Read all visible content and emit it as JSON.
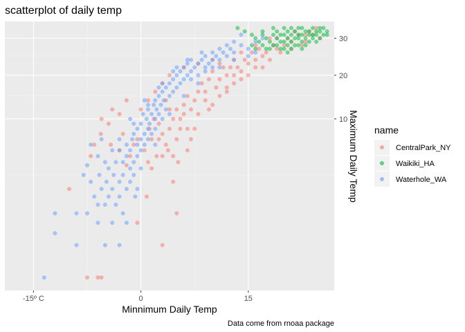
{
  "chart_data": {
    "type": "scatter",
    "title": "scatterplot of daily temp",
    "xlabel": "Minnimum Daily Temp",
    "ylabel": "Maximum Daily Temp",
    "caption": "Data come from rnoaa package",
    "xlim": [
      -19,
      27
    ],
    "ylim": [
      -10.5,
      35
    ],
    "x_ticks": [
      {
        "value": -15,
        "label": "-15º C"
      },
      {
        "value": 0,
        "label": "0"
      },
      {
        "value": 15,
        "label": "15"
      }
    ],
    "y_ticks": [
      {
        "value": 10,
        "label": "10"
      },
      {
        "value": 20,
        "label": "20"
      },
      {
        "value": 30,
        "label": "30"
      }
    ],
    "y_axis_position": "right",
    "y_scale": "sqrt",
    "grid": true,
    "alpha": 0.5,
    "legend": {
      "title": "name",
      "placement": "right",
      "entries": [
        {
          "name": "CentralPark_NY",
          "color": "#F8766D"
        },
        {
          "name": "Waikiki_HA",
          "color": "#00BA38"
        },
        {
          "name": "Waterhole_WA",
          "color": "#619CFF"
        }
      ]
    },
    "series": [
      {
        "name": "CentralPark_NY",
        "color": "#F8766D",
        "points": [
          [
            -10,
            -2
          ],
          [
            -7.5,
            -10
          ],
          [
            -6,
            -10
          ],
          [
            -5.5,
            -10
          ],
          [
            -7,
            3
          ],
          [
            -6.5,
            5
          ],
          [
            -5.6,
            7
          ],
          [
            -4.5,
            9
          ],
          [
            -4.2,
            5
          ],
          [
            -3,
            4
          ],
          [
            -2.5,
            7
          ],
          [
            -2,
            1.5
          ],
          [
            -1.5,
            3
          ],
          [
            -1,
            5
          ],
          [
            -0.5,
            6
          ],
          [
            0.5,
            4
          ],
          [
            1,
            2
          ],
          [
            1.5,
            1
          ],
          [
            0.8,
            -3
          ],
          [
            -0.5,
            -6
          ],
          [
            1.5,
            6
          ],
          [
            1.2,
            8
          ],
          [
            1.8,
            10
          ],
          [
            2.5,
            9
          ],
          [
            3,
            7
          ],
          [
            3.5,
            5
          ],
          [
            3,
            3
          ],
          [
            2.2,
            3
          ],
          [
            4,
            8
          ],
          [
            4.5,
            10
          ],
          [
            5,
            12
          ],
          [
            5.5,
            10
          ],
          [
            4,
            12
          ],
          [
            3.5,
            14
          ],
          [
            2.5,
            6
          ],
          [
            3.8,
            4
          ],
          [
            4.5,
            3
          ],
          [
            5,
            6
          ],
          [
            5.2,
            2
          ],
          [
            4.5,
            -1
          ],
          [
            5.5,
            8
          ],
          [
            6,
            11
          ],
          [
            6.5,
            8
          ],
          [
            6,
            13
          ],
          [
            6.5,
            15
          ],
          [
            7,
            12
          ],
          [
            7.5,
            14
          ],
          [
            8,
            16
          ],
          [
            8.5,
            18
          ],
          [
            9,
            16
          ],
          [
            9.5,
            19
          ],
          [
            10,
            21
          ],
          [
            10.5,
            17
          ],
          [
            11,
            19
          ],
          [
            11.5,
            22
          ],
          [
            12,
            20
          ],
          [
            12.5,
            22
          ],
          [
            13,
            20
          ],
          [
            13.5,
            22
          ],
          [
            14,
            21
          ],
          [
            14.5,
            24
          ],
          [
            15,
            23
          ],
          [
            15.5,
            26
          ],
          [
            16,
            24
          ],
          [
            16.5,
            27
          ],
          [
            17,
            25
          ],
          [
            17.5,
            26
          ],
          [
            18,
            24
          ],
          [
            18.5,
            28
          ],
          [
            19,
            27
          ],
          [
            19.5,
            26
          ],
          [
            20,
            28
          ],
          [
            20.5,
            30
          ],
          [
            21,
            29
          ],
          [
            21.5,
            32
          ],
          [
            22,
            31
          ],
          [
            22.5,
            28
          ],
          [
            23,
            31
          ],
          [
            23.5,
            32
          ],
          [
            24,
            31
          ],
          [
            24.5,
            33
          ],
          [
            25,
            30
          ],
          [
            12,
            17
          ],
          [
            11,
            15
          ],
          [
            9.5,
            12
          ],
          [
            8,
            11
          ],
          [
            7.5,
            8
          ],
          [
            7,
            6
          ],
          [
            6.5,
            4
          ],
          [
            5,
            -5
          ],
          [
            3,
            -8
          ],
          [
            -4,
            12
          ],
          [
            -5.5,
            10
          ],
          [
            -3,
            11
          ],
          [
            -2,
            14
          ],
          [
            0,
            12
          ],
          [
            1,
            14
          ],
          [
            2,
            16
          ],
          [
            3,
            18
          ],
          [
            4,
            20
          ],
          [
            6,
            22
          ],
          [
            8,
            23
          ],
          [
            10,
            24
          ],
          [
            13,
            24
          ],
          [
            11,
            23
          ],
          [
            14,
            26
          ],
          [
            16,
            28
          ],
          [
            18,
            30
          ],
          [
            19,
            30
          ],
          [
            21,
            27
          ],
          [
            23,
            29
          ],
          [
            17,
            22
          ],
          [
            9,
            14
          ],
          [
            10,
            13
          ],
          [
            12,
            16
          ],
          [
            13,
            18
          ],
          [
            15,
            20
          ],
          [
            14,
            19
          ],
          [
            16,
            22
          ]
        ]
      },
      {
        "name": "Waikiki_HA",
        "color": "#00BA38",
        "points": [
          [
            13.5,
            33
          ],
          [
            14.5,
            32
          ],
          [
            15.5,
            31
          ],
          [
            16,
            27
          ],
          [
            16.5,
            29
          ],
          [
            17,
            28
          ],
          [
            17,
            31
          ],
          [
            17.5,
            30
          ],
          [
            18,
            27
          ],
          [
            18,
            29
          ],
          [
            18.5,
            31
          ],
          [
            19,
            28
          ],
          [
            19,
            30
          ],
          [
            19.5,
            29
          ],
          [
            19.5,
            31
          ],
          [
            20,
            27
          ],
          [
            20,
            29
          ],
          [
            20,
            31
          ],
          [
            20.5,
            28
          ],
          [
            20.5,
            30
          ],
          [
            20.5,
            32
          ],
          [
            21,
            29
          ],
          [
            21,
            31
          ],
          [
            21,
            27
          ],
          [
            21.5,
            30
          ],
          [
            21.5,
            32
          ],
          [
            22,
            28
          ],
          [
            22,
            30
          ],
          [
            22,
            31
          ],
          [
            22.5,
            29
          ],
          [
            22.5,
            31
          ],
          [
            22.5,
            33
          ],
          [
            23,
            30
          ],
          [
            23,
            32
          ],
          [
            23,
            28
          ],
          [
            23.5,
            31
          ],
          [
            23.5,
            32
          ],
          [
            24,
            30
          ],
          [
            24,
            31
          ],
          [
            24,
            33
          ],
          [
            24.5,
            31
          ],
          [
            24.5,
            32
          ],
          [
            25,
            30
          ],
          [
            25,
            32
          ],
          [
            25.5,
            31
          ],
          [
            25.5,
            33
          ],
          [
            26,
            32
          ],
          [
            26,
            31
          ],
          [
            18.5,
            33
          ],
          [
            19,
            32
          ],
          [
            16,
            30
          ],
          [
            15.5,
            28
          ],
          [
            17.5,
            27
          ],
          [
            18.5,
            28
          ],
          [
            20.5,
            26
          ],
          [
            21.5,
            28
          ],
          [
            22.5,
            27
          ],
          [
            23.5,
            29
          ],
          [
            24.5,
            29
          ],
          [
            25,
            33
          ],
          [
            19.5,
            27
          ],
          [
            20,
            33
          ],
          [
            21,
            33
          ],
          [
            22,
            33
          ],
          [
            17,
            32
          ]
        ]
      },
      {
        "name": "Waterhole_WA",
        "color": "#619CFF",
        "points": [
          [
            -13.5,
            -10
          ],
          [
            -12,
            -5
          ],
          [
            -9,
            -5
          ],
          [
            -7.5,
            -5
          ],
          [
            -7.5,
            1.5
          ],
          [
            -7,
            -1
          ],
          [
            -6.5,
            -3
          ],
          [
            -6,
            -4
          ],
          [
            -5.8,
            0
          ],
          [
            -5.5,
            -2
          ],
          [
            -5,
            -4
          ],
          [
            -5,
            2
          ],
          [
            -4.8,
            -1
          ],
          [
            -4.5,
            -3
          ],
          [
            -4.5,
            1
          ],
          [
            -4,
            -2
          ],
          [
            -4,
            -6
          ],
          [
            -3.8,
            0
          ],
          [
            -3.5,
            -4
          ],
          [
            -3.5,
            2
          ],
          [
            -3,
            -1
          ],
          [
            -3,
            -3
          ],
          [
            -3,
            4
          ],
          [
            -2.5,
            -5
          ],
          [
            -2.5,
            0
          ],
          [
            -2.5,
            2
          ],
          [
            -2,
            -2
          ],
          [
            -2,
            3
          ],
          [
            -2,
            5
          ],
          [
            -1.5,
            -1
          ],
          [
            -1.5,
            1
          ],
          [
            -1.5,
            4
          ],
          [
            -1.2,
            6
          ],
          [
            -1,
            0
          ],
          [
            -1,
            2
          ],
          [
            -1,
            7
          ],
          [
            -0.8,
            -3
          ],
          [
            -0.5,
            3
          ],
          [
            -0.5,
            5
          ],
          [
            -0.5,
            8
          ],
          [
            0,
            1
          ],
          [
            0,
            4
          ],
          [
            0,
            6
          ],
          [
            0,
            9
          ],
          [
            0.3,
            11
          ],
          [
            0.5,
            5
          ],
          [
            0.5,
            7
          ],
          [
            0.8,
            10
          ],
          [
            1,
            6
          ],
          [
            1,
            8
          ],
          [
            1,
            12
          ],
          [
            1.2,
            9
          ],
          [
            1.5,
            7
          ],
          [
            1.5,
            11
          ],
          [
            1.8,
            13
          ],
          [
            2,
            8
          ],
          [
            2,
            10
          ],
          [
            2,
            14
          ],
          [
            2.2,
            12
          ],
          [
            2.5,
            11
          ],
          [
            2.5,
            15
          ],
          [
            2.8,
            13
          ],
          [
            3,
            10
          ],
          [
            3,
            16
          ],
          [
            3.2,
            14
          ],
          [
            3.5,
            12
          ],
          [
            3.5,
            17
          ],
          [
            4,
            15
          ],
          [
            4,
            18
          ],
          [
            4.5,
            16
          ],
          [
            4.5,
            19
          ],
          [
            5,
            17
          ],
          [
            5,
            20
          ],
          [
            5.5,
            18
          ],
          [
            5.5,
            21
          ],
          [
            6,
            19
          ],
          [
            6,
            22
          ],
          [
            6.5,
            20
          ],
          [
            6.5,
            23
          ],
          [
            7,
            21
          ],
          [
            7,
            24
          ],
          [
            7.5,
            22
          ],
          [
            8,
            23
          ],
          [
            8,
            20
          ],
          [
            8.5,
            24
          ],
          [
            9,
            22
          ],
          [
            9,
            25
          ],
          [
            9.5,
            23
          ],
          [
            10,
            24
          ],
          [
            10,
            26
          ],
          [
            10.5,
            25
          ],
          [
            11,
            24
          ],
          [
            11,
            27
          ],
          [
            11.5,
            26
          ],
          [
            12,
            25
          ],
          [
            12.5,
            27
          ],
          [
            13,
            26
          ],
          [
            13,
            29
          ],
          [
            14,
            28
          ],
          [
            15,
            27
          ],
          [
            16,
            29
          ],
          [
            17,
            30
          ],
          [
            14,
            31
          ],
          [
            12,
            28
          ],
          [
            10,
            22
          ],
          [
            8,
            18
          ],
          [
            6,
            15
          ],
          [
            4,
            11
          ],
          [
            2,
            5
          ],
          [
            -0.5,
            -2
          ],
          [
            -2,
            -6
          ],
          [
            -3,
            -8
          ],
          [
            -5,
            -8
          ],
          [
            -9,
            -8
          ],
          [
            -12,
            -7
          ],
          [
            -6,
            -6
          ],
          [
            -4,
            4
          ],
          [
            -6,
            3
          ],
          [
            -8,
            0
          ],
          [
            -3,
            6
          ],
          [
            -1,
            9
          ],
          [
            1,
            13
          ],
          [
            3,
            18
          ],
          [
            5,
            22
          ],
          [
            7,
            19
          ],
          [
            9,
            21
          ],
          [
            11,
            22
          ],
          [
            13,
            24
          ],
          [
            15,
            25
          ],
          [
            16,
            26
          ],
          [
            -1.5,
            10
          ],
          [
            0.5,
            14
          ],
          [
            2.5,
            17
          ],
          [
            4.5,
            21
          ],
          [
            6.5,
            24
          ],
          [
            8.5,
            26
          ],
          [
            -7,
            5
          ],
          [
            -5.5,
            6
          ]
        ]
      }
    ]
  }
}
